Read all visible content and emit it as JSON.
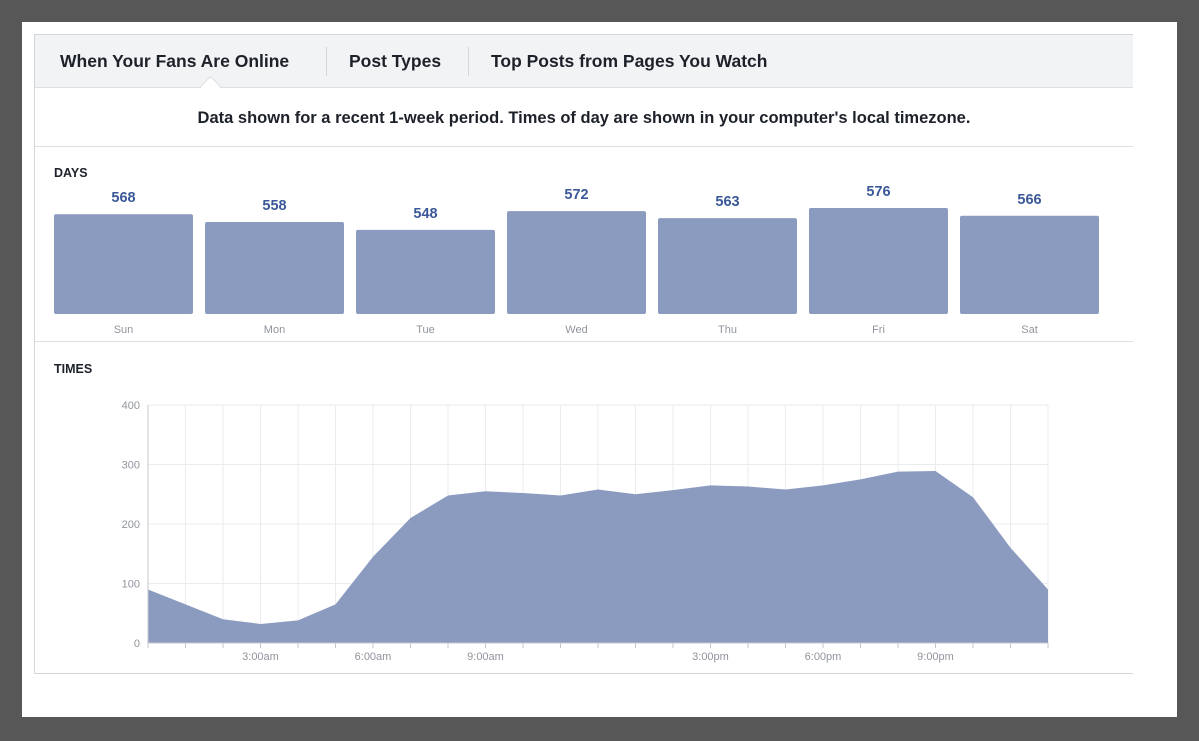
{
  "tabs": [
    {
      "label": "When Your Fans Are Online",
      "active": true
    },
    {
      "label": "Post Types",
      "active": false
    },
    {
      "label": "Top Posts from Pages You Watch",
      "active": false
    }
  ],
  "note": "Data shown for a recent 1-week period. Times of day are shown in your computer's local timezone.",
  "days_label": "DAYS",
  "times_label": "TIMES",
  "colors": {
    "bar": "#8b9bbf",
    "area": "#8b9bbf",
    "value_text": "#3b5998",
    "axis_text": "#90949c",
    "grid": "#e9ebee"
  },
  "chart_data": [
    {
      "type": "bar",
      "title": "DAYS",
      "categories": [
        "Sun",
        "Mon",
        "Tue",
        "Wed",
        "Thu",
        "Fri",
        "Sat"
      ],
      "values": [
        568,
        558,
        548,
        572,
        563,
        576,
        566
      ],
      "data_labels": [
        "568",
        "558",
        "548",
        "572",
        "563",
        "576",
        "566"
      ]
    },
    {
      "type": "area",
      "title": "TIMES",
      "x": [
        0,
        1,
        2,
        3,
        4,
        5,
        6,
        7,
        8,
        9,
        10,
        11,
        12,
        13,
        14,
        15,
        16,
        17,
        18,
        19,
        20,
        21,
        22,
        23,
        24
      ],
      "values": [
        90,
        65,
        40,
        32,
        38,
        65,
        145,
        210,
        248,
        255,
        252,
        248,
        258,
        250,
        257,
        265,
        263,
        258,
        265,
        275,
        288,
        289,
        245,
        160,
        90
      ],
      "ylim": [
        0,
        400
      ],
      "yticks": [
        0,
        100,
        200,
        300,
        400
      ],
      "ytick_labels": [
        "0",
        "100",
        "200",
        "300",
        "400"
      ],
      "xtick_labels": [
        {
          "x": 3,
          "label": "3:00am"
        },
        {
          "x": 6,
          "label": "6:00am"
        },
        {
          "x": 9,
          "label": "9:00am"
        },
        {
          "x": 15,
          "label": "3:00pm"
        },
        {
          "x": 18,
          "label": "6:00pm"
        },
        {
          "x": 21,
          "label": "9:00pm"
        }
      ],
      "grid": true
    }
  ]
}
